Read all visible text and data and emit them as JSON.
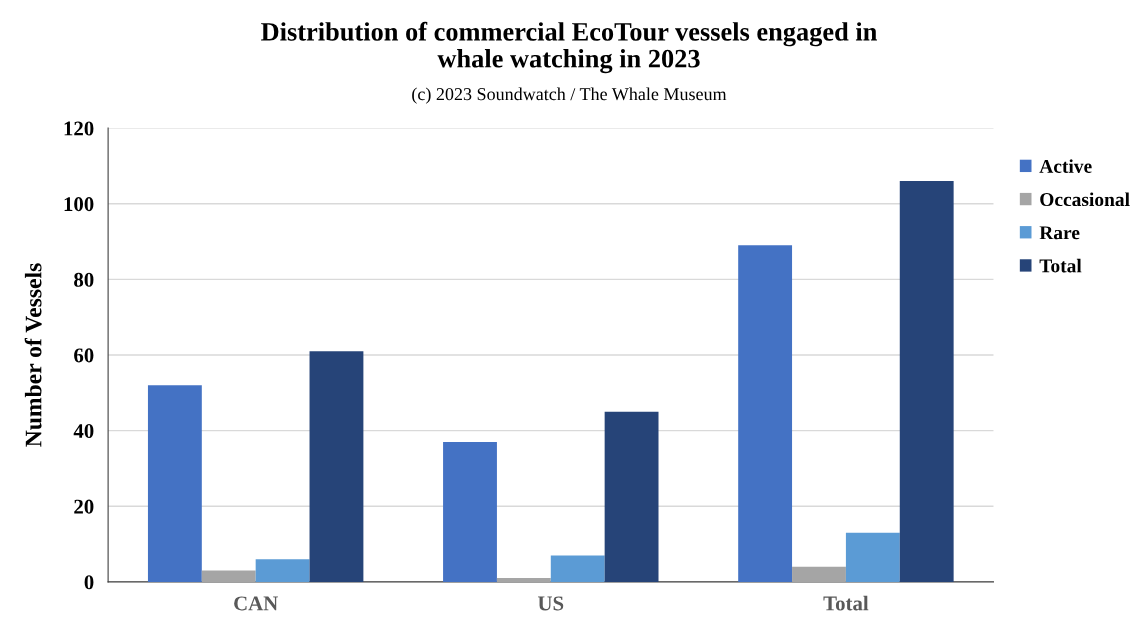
{
  "chart_data": {
    "type": "bar",
    "title": "Distribution of commercial EcoTour vessels engaged in\nwhale watching in 2023",
    "subtitle": "(c) 2023 Soundwatch / The Whale Museum",
    "ylabel": "Number of Vessels",
    "categories": [
      "CAN",
      "US",
      "Total"
    ],
    "series": [
      {
        "name": "Active",
        "color": "#4472c4",
        "values": [
          52,
          37,
          89
        ]
      },
      {
        "name": "Occasional",
        "color": "#a5a5a5",
        "values": [
          3,
          1,
          4
        ]
      },
      {
        "name": "Rare",
        "color": "#5b9bd5",
        "values": [
          6,
          7,
          13
        ]
      },
      {
        "name": "Total",
        "color": "#264478",
        "values": [
          61,
          45,
          106
        ]
      }
    ],
    "ylim": [
      0,
      120
    ],
    "yticks": [
      0,
      20,
      40,
      60,
      80,
      100,
      120
    ],
    "grid": "y",
    "legend": "right"
  }
}
